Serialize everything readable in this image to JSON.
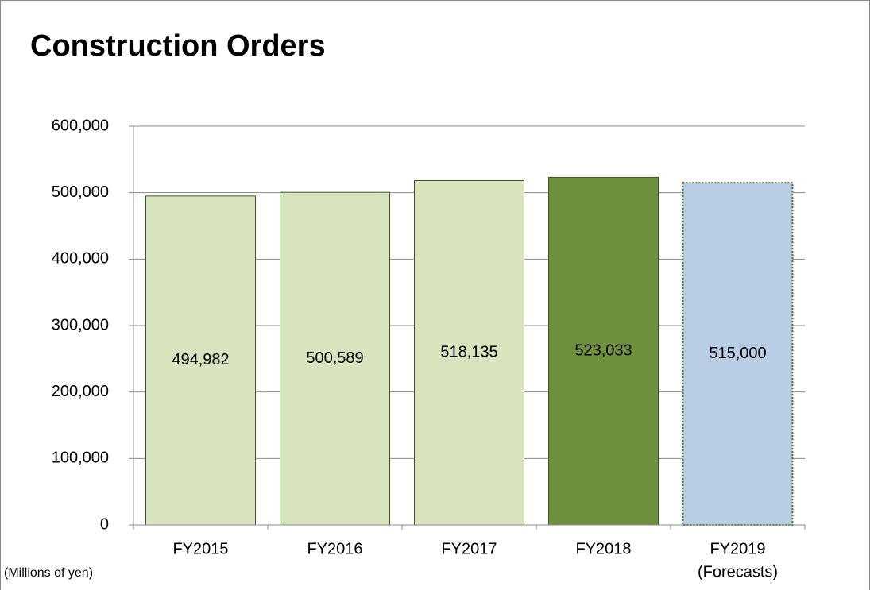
{
  "chart_data": {
    "type": "bar",
    "title": "Construction Orders",
    "categories": [
      "FY2015",
      "FY2016",
      "FY2017",
      "FY2018",
      "FY2019"
    ],
    "category_note": "(Forecasts)",
    "unit_label": "(Millions of yen)",
    "values": [
      494982,
      500589,
      518135,
      523033,
      515000
    ],
    "value_labels": [
      "494,982",
      "500,589",
      "518,135",
      "523,033",
      "515,000"
    ],
    "colors": [
      "#d7e4bd",
      "#d7e4bd",
      "#d7e4bd",
      "#6f913d",
      "#b9cde5"
    ],
    "dotted": [
      false,
      false,
      false,
      false,
      true
    ],
    "ylim": [
      0,
      600000
    ],
    "yticks": [
      0,
      {
        "value": 100000,
        "label": "100,000"
      },
      {
        "value": 200000,
        "label": "200,000"
      },
      {
        "value": 300000,
        "label": "300,000"
      },
      {
        "value": 400000,
        "label": "400,000"
      },
      {
        "value": 500000,
        "label": "500,000"
      },
      {
        "value": 600000,
        "label": "600,000"
      }
    ],
    "grid": true
  }
}
